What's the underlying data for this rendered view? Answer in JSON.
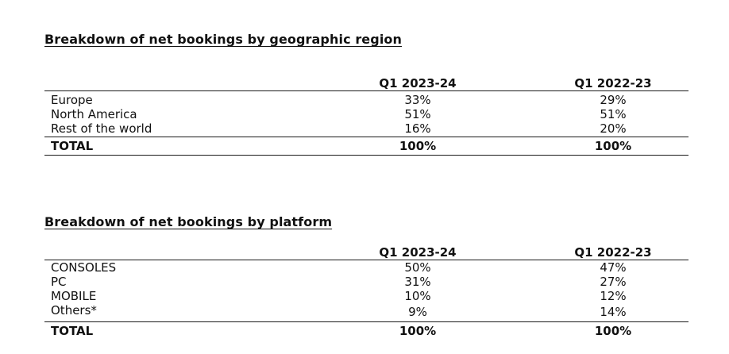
{
  "sections": [
    {
      "title": "Breakdown of net bookings by geographic region",
      "headers": [
        "",
        "Q1 2023-24",
        "Q1 2022-23"
      ],
      "rows": [
        {
          "label": "Europe",
          "q1_2023_24": "33%",
          "q1_2022_23": "29%"
        },
        {
          "label": "North America",
          "q1_2023_24": "51%",
          "q1_2022_23": "51%"
        },
        {
          "label": "Rest of the world",
          "q1_2023_24": "16%",
          "q1_2022_23": "20%"
        }
      ],
      "total": {
        "label": "TOTAL",
        "q1_2023_24": "100%",
        "q1_2022_23": "100%"
      }
    },
    {
      "title": "Breakdown of net bookings by platform",
      "headers": [
        "",
        "Q1 2023-24",
        "Q1 2022-23"
      ],
      "rows": [
        {
          "label": "CONSOLES",
          "q1_2023_24": "50%",
          "q1_2022_23": "47%"
        },
        {
          "label": "PC",
          "q1_2023_24": "31%",
          "q1_2022_23": "27%"
        },
        {
          "label": "MOBILE",
          "q1_2023_24": "10%",
          "q1_2022_23": "12%"
        },
        {
          "label": "Others*",
          "q1_2023_24": "9%",
          "q1_2022_23": "14%"
        }
      ],
      "total": {
        "label": "TOTAL",
        "q1_2023_24": "100%",
        "q1_2022_23": "100%"
      }
    }
  ]
}
